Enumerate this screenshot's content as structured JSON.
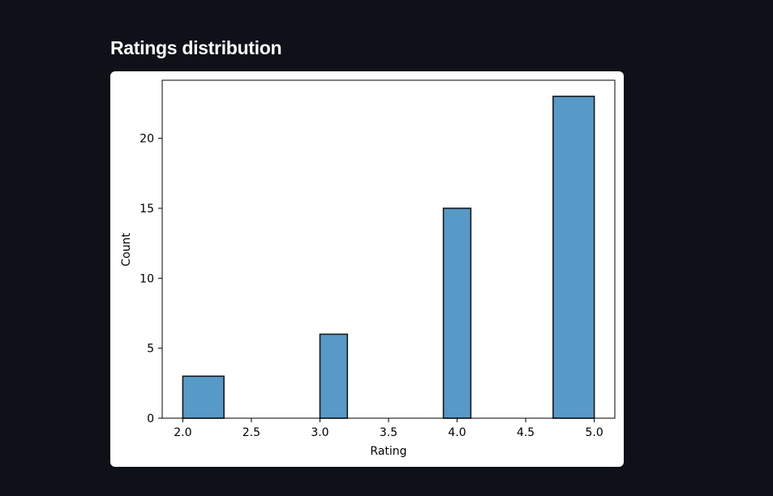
{
  "page": {
    "title": "Ratings distribution"
  },
  "chart_data": {
    "type": "bar",
    "title": "",
    "xlabel": "Rating",
    "ylabel": "Count",
    "bins": [
      {
        "x0": 2.0,
        "x1": 2.3,
        "count": 3
      },
      {
        "x0": 3.0,
        "x1": 3.2,
        "count": 6
      },
      {
        "x0": 3.9,
        "x1": 4.1,
        "count": 15
      },
      {
        "x0": 4.7,
        "x1": 5.0,
        "count": 23
      }
    ],
    "xlim": [
      1.85,
      5.15
    ],
    "ylim": [
      0,
      24.15
    ],
    "xticks": [
      2.0,
      2.5,
      3.0,
      3.5,
      4.0,
      4.5,
      5.0
    ],
    "xtick_labels": [
      "2.0",
      "2.5",
      "3.0",
      "3.5",
      "4.0",
      "4.5",
      "5.0"
    ],
    "yticks": [
      0,
      5,
      10,
      15,
      20
    ],
    "ytick_labels": [
      "0",
      "5",
      "10",
      "15",
      "20"
    ],
    "grid": false,
    "bar_color": "#5799c7",
    "edge_color": "#1a1a1a"
  }
}
